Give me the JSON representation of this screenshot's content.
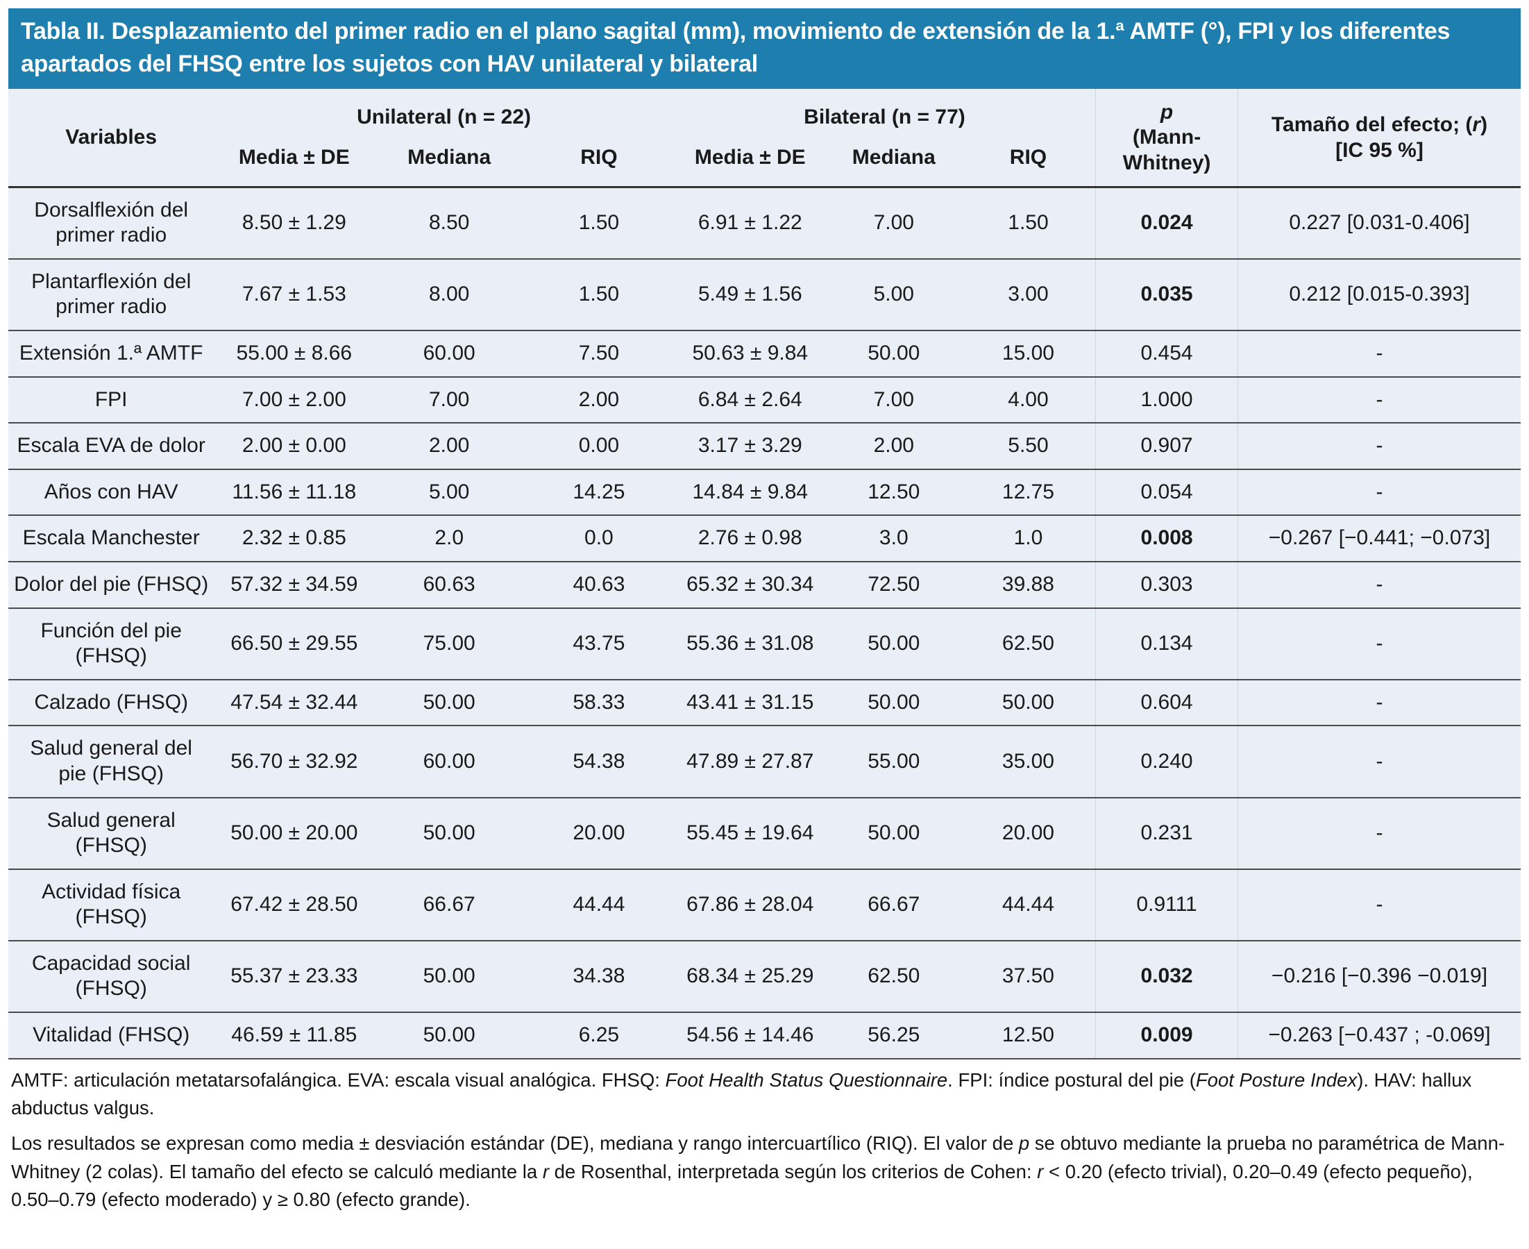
{
  "title": "Tabla II. Desplazamiento del primer radio en el plano sagital (mm), movimiento de extensión de la 1.ª AMTF (°), FPI y los diferentes apartados del FHSQ entre los sujetos con HAV unilateral y bilateral",
  "colors": {
    "title_bar_background": "#1e7fae",
    "title_text": "#ffffff",
    "table_background": "#e9eef7",
    "rule_line": "#4b4b4b"
  },
  "table": {
    "header": {
      "variables": "Variables",
      "unilateral": "Unilateral (n = 22)",
      "bilateral": "Bilateral (n = 77)",
      "sub": [
        "Media ± DE",
        "Mediana",
        "RIQ"
      ],
      "p_symbol": "p",
      "p_sub": "(Mann-Whitney)",
      "effect_segments": [
        {
          "t": "Tamaño del efecto; ("
        },
        {
          "t": "r",
          "i": true
        },
        {
          "t": ")"
        },
        {
          "br": true
        },
        {
          "t": "[IC 95 %]"
        }
      ]
    },
    "rows": [
      {
        "variable": "Dorsalflexión del primer radio",
        "uni": [
          "8.50 ± 1.29",
          "8.50",
          "1.50"
        ],
        "bil": [
          "6.91 ± 1.22",
          "7.00",
          "1.50"
        ],
        "p": "0.024",
        "p_bold": true,
        "efecto": "0.227 [0.031-0.406]"
      },
      {
        "variable": "Plantarflexión del primer radio",
        "uni": [
          "7.67 ± 1.53",
          "8.00",
          "1.50"
        ],
        "bil": [
          "5.49 ± 1.56",
          "5.00",
          "3.00"
        ],
        "p": "0.035",
        "p_bold": true,
        "efecto": "0.212 [0.015-0.393]"
      },
      {
        "variable": "Extensión 1.ª AMTF",
        "uni": [
          "55.00 ± 8.66",
          "60.00",
          "7.50"
        ],
        "bil": [
          "50.63 ± 9.84",
          "50.00",
          "15.00"
        ],
        "p": "0.454",
        "p_bold": false,
        "efecto": "-"
      },
      {
        "variable": "FPI",
        "uni": [
          "7.00 ± 2.00",
          "7.00",
          "2.00"
        ],
        "bil": [
          "6.84 ± 2.64",
          "7.00",
          "4.00"
        ],
        "p": "1.000",
        "p_bold": false,
        "efecto": "-"
      },
      {
        "variable": "Escala EVA de dolor",
        "uni": [
          "2.00 ± 0.00",
          "2.00",
          "0.00"
        ],
        "bil": [
          "3.17 ± 3.29",
          "2.00",
          "5.50"
        ],
        "p": "0.907",
        "p_bold": false,
        "efecto": "-"
      },
      {
        "variable": "Años con HAV",
        "uni": [
          "11.56 ± 11.18",
          "5.00",
          "14.25"
        ],
        "bil": [
          "14.84 ± 9.84",
          "12.50",
          "12.75"
        ],
        "p": "0.054",
        "p_bold": false,
        "efecto": "-"
      },
      {
        "variable": "Escala Manchester",
        "uni": [
          "2.32 ± 0.85",
          "2.0",
          "0.0"
        ],
        "bil": [
          "2.76 ± 0.98",
          "3.0",
          "1.0"
        ],
        "p": "0.008",
        "p_bold": true,
        "efecto": "−0.267 [−0.441; −0.073]"
      },
      {
        "variable": "Dolor del pie (FHSQ)",
        "uni": [
          "57.32 ± 34.59",
          "60.63",
          "40.63"
        ],
        "bil": [
          "65.32 ± 30.34",
          "72.50",
          "39.88"
        ],
        "p": "0.303",
        "p_bold": false,
        "efecto": "-"
      },
      {
        "variable": "Función del pie (FHSQ)",
        "uni": [
          "66.50 ± 29.55",
          "75.00",
          "43.75"
        ],
        "bil": [
          "55.36 ± 31.08",
          "50.00",
          "62.50"
        ],
        "p": "0.134",
        "p_bold": false,
        "efecto": "-"
      },
      {
        "variable": "Calzado (FHSQ)",
        "uni": [
          "47.54 ± 32.44",
          "50.00",
          "58.33"
        ],
        "bil": [
          "43.41 ± 31.15",
          "50.00",
          "50.00"
        ],
        "p": "0.604",
        "p_bold": false,
        "efecto": "-"
      },
      {
        "variable": "Salud general del pie (FHSQ)",
        "uni": [
          "56.70 ± 32.92",
          "60.00",
          "54.38"
        ],
        "bil": [
          "47.89 ± 27.87",
          "55.00",
          "35.00"
        ],
        "p": "0.240",
        "p_bold": false,
        "efecto": "-"
      },
      {
        "variable": "Salud general (FHSQ)",
        "uni": [
          "50.00 ± 20.00",
          "50.00",
          "20.00"
        ],
        "bil": [
          "55.45 ± 19.64",
          "50.00",
          "20.00"
        ],
        "p": "0.231",
        "p_bold": false,
        "efecto": "-"
      },
      {
        "variable": "Actividad física (FHSQ)",
        "uni": [
          "67.42 ± 28.50",
          "66.67",
          "44.44"
        ],
        "bil": [
          "67.86 ± 28.04",
          "66.67",
          "44.44"
        ],
        "p": "0.9111",
        "p_bold": false,
        "efecto": "-"
      },
      {
        "variable": "Capacidad social (FHSQ)",
        "uni": [
          "55.37 ± 23.33",
          "50.00",
          "34.38"
        ],
        "bil": [
          "68.34 ± 25.29",
          "62.50",
          "37.50"
        ],
        "p": "0.032",
        "p_bold": true,
        "efecto": "−0.216 [−0.396 −0.019]"
      },
      {
        "variable": "Vitalidad (FHSQ)",
        "uni": [
          "46.59 ± 11.85",
          "50.00",
          "6.25"
        ],
        "bil": [
          "54.56 ± 14.46",
          "56.25",
          "12.50"
        ],
        "p": "0.009",
        "p_bold": true,
        "efecto": "−0.263 [−0.437 ; -0.069]"
      }
    ]
  },
  "footnotes": [
    {
      "segments": [
        {
          "t": "AMTF: articulación metatarsofalángica. EVA: escala visual analógica. FHSQ: "
        },
        {
          "t": "Foot Health Status Questionnaire",
          "i": true
        },
        {
          "t": ". FPI: índice postural del pie ("
        },
        {
          "t": "Foot Posture Index",
          "i": true
        },
        {
          "t": "). HAV: hallux abductus valgus."
        }
      ]
    },
    {
      "segments": [
        {
          "t": "Los resultados se expresan como media ± desviación estándar (DE), mediana y rango intercuartílico (RIQ). El valor de "
        },
        {
          "t": "p",
          "i": true
        },
        {
          "t": " se obtuvo mediante la prueba no paramétrica de Mann-Whitney (2 colas). El tamaño del efecto se calculó mediante la "
        },
        {
          "t": "r",
          "i": true
        },
        {
          "t": " de Rosenthal, interpretada según los criterios de Cohen: "
        },
        {
          "t": "r",
          "i": true
        },
        {
          "t": " < 0.20 (efecto trivial), 0.20–0.49 (efecto pequeño), 0.50–0.79 (efecto moderado) y ≥ 0.80 (efecto grande)."
        }
      ]
    }
  ]
}
